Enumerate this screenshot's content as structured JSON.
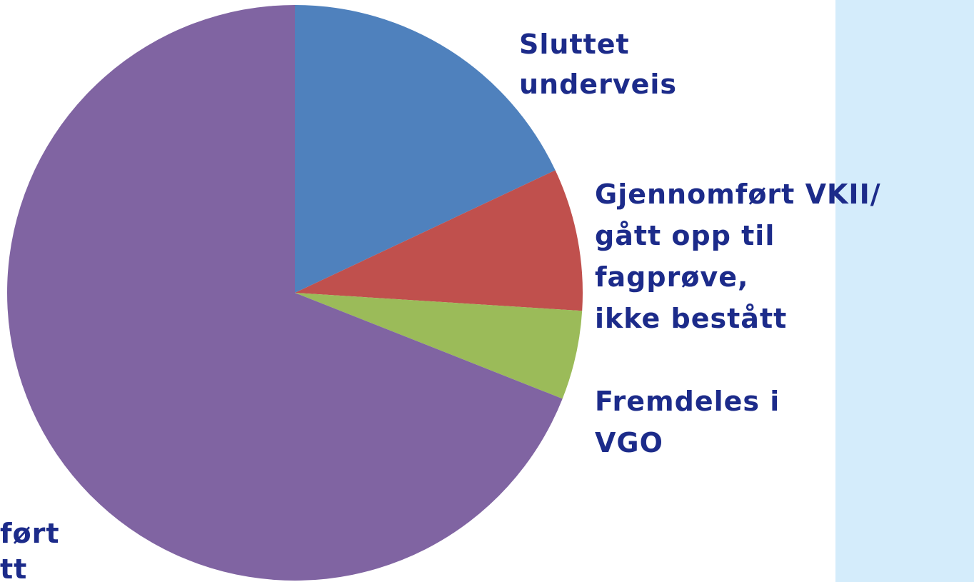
{
  "chart_data": {
    "type": "pie",
    "categories": [
      [
        "Sluttet",
        "underveis"
      ],
      [
        "Gjennomført VKII/",
        "gått opp til",
        "fagprøve,",
        "ikke bestått"
      ],
      [
        "Fremdeles i",
        "VGO"
      ],
      [
        "ført",
        "tt"
      ]
    ],
    "values": [
      18,
      8,
      5,
      69
    ],
    "colors": [
      "#4f81bd",
      "#c0504d",
      "#9bbb59",
      "#8064a2"
    ]
  }
}
